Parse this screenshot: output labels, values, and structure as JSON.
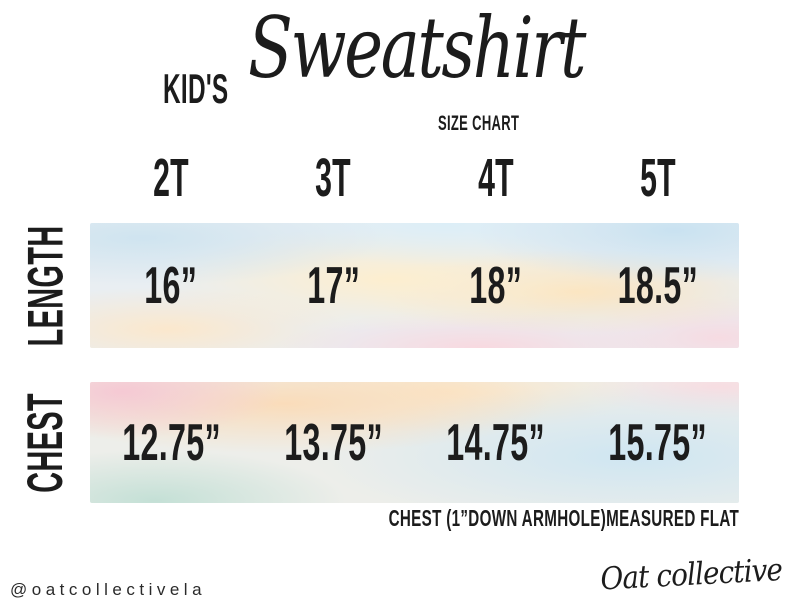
{
  "title": {
    "kicker": "KID'S",
    "name": "Sweatshirt",
    "subtitle": "SIZE CHART"
  },
  "size_chart": {
    "columns": [
      "2T",
      "3T",
      "4T",
      "5T"
    ],
    "rows": [
      {
        "label": "LENGTH",
        "values": [
          "16”",
          "17”",
          "18”",
          "18.5”"
        ]
      },
      {
        "label": "CHEST",
        "values": [
          "12.75”",
          "13.75”",
          "14.75”",
          "15.75”"
        ]
      }
    ]
  },
  "footnote": "CHEST (1”DOWN ARMHOLE)MEASURED FLAT",
  "footer": {
    "handle": "@oatcollectivela",
    "brand_signature": "Oat collective"
  },
  "colors": {
    "ink": "#1c1c1c",
    "background": "#ffffff",
    "pastel_blue": "#cfe4f0",
    "pastel_cream": "#fdeecf",
    "pastel_peach": "#fbe0bd",
    "pastel_pink": "#f6d5dc",
    "pastel_mint": "#c4e0d6"
  }
}
